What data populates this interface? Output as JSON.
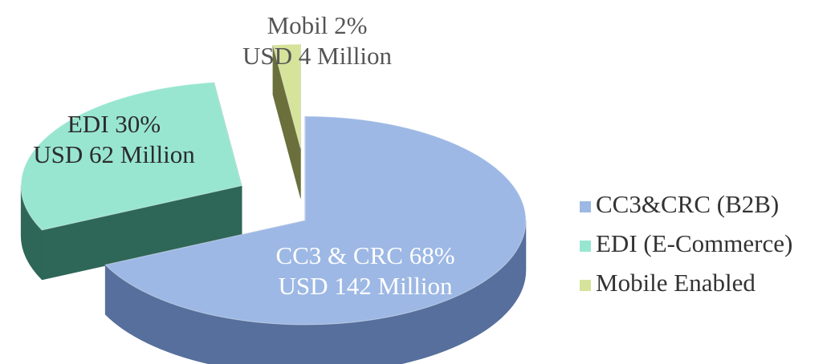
{
  "chart_data": {
    "type": "pie",
    "categories": [
      "CC3&CRC (B2B)",
      "EDI (E-Commerce)",
      "Mobile Enabled"
    ],
    "values": [
      68,
      30,
      2
    ],
    "value_labels": [
      "CC3 & CRC 68%",
      "EDI 30%",
      "Mobil 2%"
    ],
    "amount_labels": [
      "USD 142 Million",
      "USD 62 Million",
      "USD 4 Million"
    ],
    "colors": [
      "#9db8e4",
      "#98e6d0",
      "#d6e39a"
    ],
    "side_colors": [
      "#566f9c",
      "#2e6657",
      "#6a6f3c"
    ],
    "legend": "right",
    "exploded": [
      false,
      true,
      true
    ]
  }
}
